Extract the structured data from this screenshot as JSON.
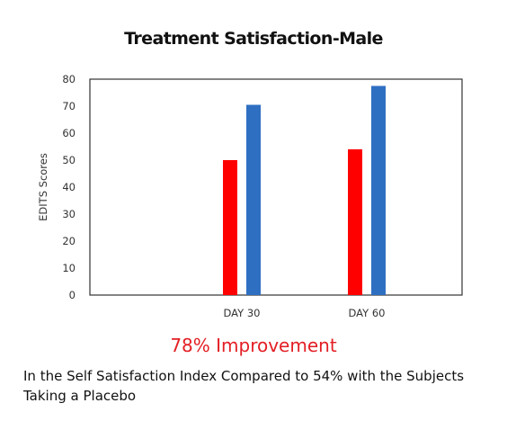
{
  "chart_data": {
    "type": "bar",
    "title": "Treatment Satisfaction-Male",
    "ylabel": "EDITS Scores",
    "xlabel": "",
    "ylim": [
      0,
      80
    ],
    "yticks": [
      0,
      10,
      20,
      30,
      40,
      50,
      60,
      70,
      80
    ],
    "categories": [
      "DAY 30",
      "DAY 60"
    ],
    "series": [
      {
        "color": "#ff0000",
        "values": [
          50,
          54
        ]
      },
      {
        "color": "#2f6fc2",
        "values": [
          70.5,
          77.5
        ]
      }
    ],
    "grid": false,
    "legend": "none"
  },
  "footer": {
    "headline": "78% Improvement",
    "caption": "In the Self Satisfaction Index Compared to 54% with the Subjects Taking a Placebo"
  }
}
